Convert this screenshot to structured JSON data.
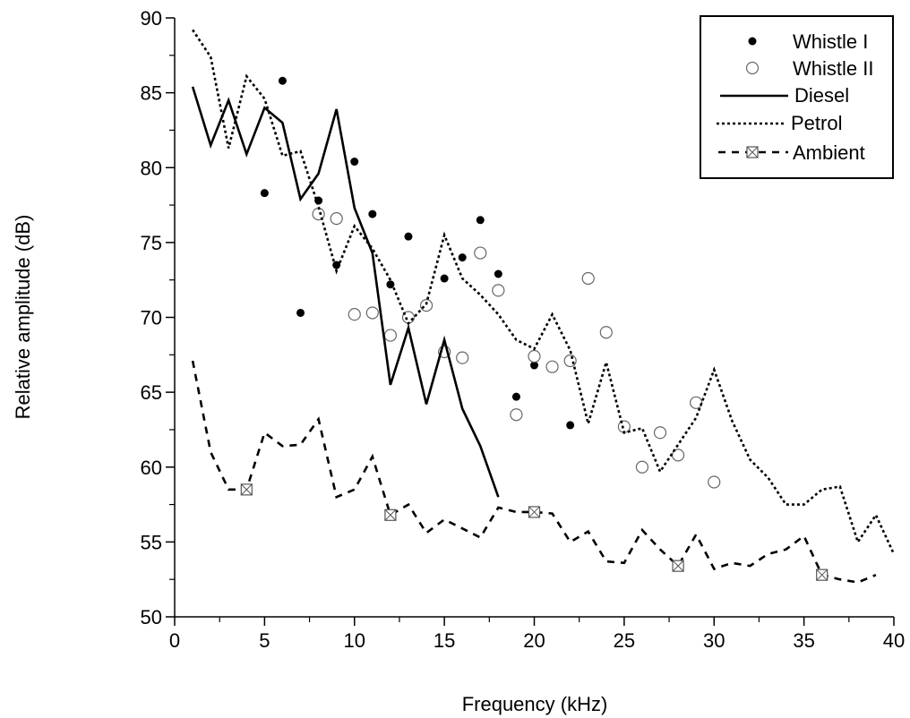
{
  "chart_data": {
    "type": "scatter",
    "xlabel": "Frequency (kHz)",
    "ylabel": "Relative amplitude (dB)",
    "xlim": [
      0,
      40
    ],
    "ylim": [
      50,
      90
    ],
    "xticks": [
      "0",
      "5",
      "10",
      "15",
      "20",
      "25",
      "30",
      "35",
      "40"
    ],
    "yticks": [
      "50",
      "55",
      "60",
      "65",
      "70",
      "75",
      "80",
      "85",
      "90"
    ],
    "grid": false,
    "legend_position": "top-right",
    "series": [
      {
        "name": "Whistle I",
        "style": "filled-circle",
        "x": [
          5,
          6,
          7,
          8,
          9,
          10,
          11,
          12,
          13,
          15,
          16,
          17,
          18,
          19,
          20,
          22
        ],
        "y": [
          78.3,
          85.8,
          70.3,
          77.8,
          73.5,
          80.4,
          76.9,
          72.2,
          75.4,
          72.6,
          74.0,
          76.5,
          72.9,
          64.7,
          66.8,
          62.8
        ]
      },
      {
        "name": "Whistle II",
        "style": "open-circle",
        "x": [
          8,
          9,
          10,
          11,
          12,
          13,
          14,
          15,
          16,
          17,
          18,
          19,
          20,
          21,
          22,
          23,
          24,
          25,
          26,
          27,
          28,
          29,
          30
        ],
        "y": [
          76.9,
          76.6,
          70.2,
          70.3,
          68.8,
          70.0,
          70.8,
          67.7,
          67.3,
          74.3,
          71.8,
          63.5,
          67.4,
          66.7,
          67.1,
          72.6,
          69.0,
          62.7,
          60.0,
          62.3,
          60.8,
          64.3,
          59.0
        ]
      },
      {
        "name": "Diesel",
        "style": "solid-line",
        "x": [
          1,
          2,
          3,
          4,
          5,
          6,
          7,
          8,
          9,
          10,
          11,
          12,
          13,
          14,
          15,
          16,
          17,
          18
        ],
        "y": [
          85.4,
          81.5,
          84.5,
          80.9,
          84.0,
          83.0,
          77.9,
          79.6,
          83.9,
          77.3,
          74.3,
          65.5,
          69.3,
          64.2,
          68.5,
          63.9,
          61.4,
          58.0
        ]
      },
      {
        "name": "Petrol",
        "style": "dotted-line",
        "x": [
          1,
          2,
          3,
          4,
          5,
          6,
          7,
          8,
          9,
          10,
          11,
          12,
          13,
          14,
          15,
          16,
          17,
          18,
          19,
          20,
          21,
          22,
          23,
          24,
          25,
          26,
          27,
          28,
          29,
          30,
          31,
          32,
          33,
          34,
          35,
          36,
          37,
          38,
          39,
          40
        ],
        "y": [
          89.2,
          87.4,
          81.3,
          86.1,
          84.6,
          80.8,
          81.1,
          77.4,
          73.1,
          76.1,
          74.6,
          72.5,
          69.6,
          70.9,
          75.5,
          72.6,
          71.5,
          70.2,
          68.5,
          67.9,
          70.2,
          67.8,
          62.9,
          67.0,
          62.3,
          62.6,
          59.7,
          61.5,
          63.3,
          66.5,
          63.1,
          60.5,
          59.3,
          57.5,
          57.5,
          58.5,
          58.7,
          55.0,
          56.8,
          54.2
        ]
      },
      {
        "name": "Ambient",
        "style": "dashed-line-square-x",
        "x": [
          1,
          2,
          3,
          4,
          5,
          6,
          7,
          8,
          9,
          10,
          11,
          12,
          13,
          14,
          15,
          16,
          17,
          18,
          19,
          20,
          21,
          22,
          23,
          24,
          25,
          26,
          27,
          28,
          29,
          30,
          31,
          32,
          33,
          34,
          35,
          36,
          37,
          38,
          39
        ],
        "y": [
          67.1,
          61.0,
          58.5,
          58.5,
          62.3,
          61.4,
          61.5,
          63.2,
          58.0,
          58.5,
          60.7,
          56.8,
          57.5,
          55.6,
          56.5,
          55.9,
          55.3,
          57.3,
          57.0,
          57.0,
          56.9,
          55.0,
          55.7,
          53.7,
          53.6,
          55.8,
          54.5,
          53.4,
          55.5,
          53.2,
          53.6,
          53.4,
          54.2,
          54.5,
          55.4,
          52.8,
          52.5,
          52.3,
          52.8
        ],
        "markers_x": [
          4,
          12,
          20,
          28,
          36
        ]
      }
    ]
  }
}
